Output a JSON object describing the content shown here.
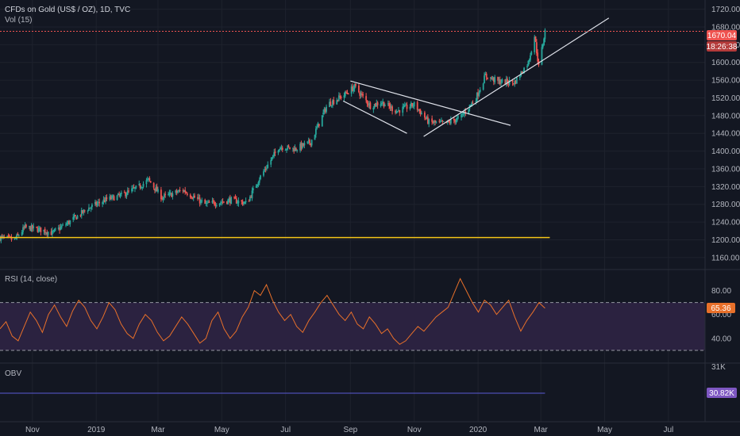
{
  "header": {
    "symbol": "CFDs on Gold (US$ / OZ), 1D, TVC",
    "volume_label": "Vol (15)"
  },
  "rsi_label": "RSI (14, close)",
  "obv_label": "OBV",
  "badges": {
    "price": "1670.04",
    "countdown": "18:26:38",
    "rsi": "65.36",
    "obv": "30.82K"
  },
  "colors": {
    "background": "#131722",
    "grid": "#1e222d",
    "up": "#26a69a",
    "down": "#ef5350",
    "rsi_line": "#e8702a",
    "rsi_band": "#2b2240",
    "support_line": "#f5c518",
    "trend_lines": "#e0e3eb",
    "price_badge": "#ef5350",
    "obv_line": "#5b5bd6",
    "obv_badge": "#7e57c2"
  },
  "x_axis_labels": [
    "Nov",
    "2019",
    "Mar",
    "May",
    "Jul",
    "Sep",
    "Nov",
    "2020",
    "Mar",
    "May",
    "Jul"
  ],
  "chart_data": [
    {
      "type": "candlestick",
      "title": "CFDs on Gold (US$ / OZ), 1D, TVC",
      "y_ticks": [
        1720,
        1680,
        1640,
        1600,
        1560,
        1520,
        1480,
        1440,
        1400,
        1360,
        1320,
        1280,
        1240,
        1200,
        1160
      ],
      "y_range": [
        1140,
        1730
      ],
      "x_range": [
        "2018-10-01",
        "2020-08-05"
      ],
      "current_price": 1670.04,
      "close_path": [
        [
          "2018-10-01",
          1205
        ],
        [
          "2018-10-15",
          1200
        ],
        [
          "2018-10-25",
          1228
        ],
        [
          "2018-11-10",
          1222
        ],
        [
          "2018-11-20",
          1215
        ],
        [
          "2018-12-05",
          1238
        ],
        [
          "2018-12-25",
          1272
        ],
        [
          "2019-01-10",
          1290
        ],
        [
          "2019-01-25",
          1300
        ],
        [
          "2019-02-10",
          1318
        ],
        [
          "2019-02-20",
          1335
        ],
        [
          "2019-03-05",
          1295
        ],
        [
          "2019-03-25",
          1312
        ],
        [
          "2019-04-15",
          1280
        ],
        [
          "2019-04-30",
          1285
        ],
        [
          "2019-05-10",
          1290
        ],
        [
          "2019-05-25",
          1282
        ],
        [
          "2019-06-05",
          1335
        ],
        [
          "2019-06-25",
          1410
        ],
        [
          "2019-07-10",
          1405
        ],
        [
          "2019-07-25",
          1420
        ],
        [
          "2019-08-10",
          1505
        ],
        [
          "2019-08-25",
          1525
        ],
        [
          "2019-09-05",
          1545
        ],
        [
          "2019-09-20",
          1502
        ],
        [
          "2019-10-01",
          1510
        ],
        [
          "2019-10-15",
          1490
        ],
        [
          "2019-11-01",
          1505
        ],
        [
          "2019-11-15",
          1465
        ],
        [
          "2019-12-01",
          1462
        ],
        [
          "2019-12-15",
          1475
        ],
        [
          "2019-12-30",
          1520
        ],
        [
          "2020-01-08",
          1570
        ],
        [
          "2020-01-20",
          1557
        ],
        [
          "2020-02-05",
          1555
        ],
        [
          "2020-02-18",
          1600
        ],
        [
          "2020-02-24",
          1660
        ],
        [
          "2020-02-28",
          1590
        ],
        [
          "2020-03-05",
          1670
        ]
      ],
      "horizontal_lines": [
        {
          "price": 1205,
          "from": "2018-10-01",
          "to": "2020-03-05",
          "color": "support"
        }
      ],
      "trend_lines": [
        {
          "from": [
            "2019-09-01",
            1558
          ],
          "to": [
            "2020-02-01",
            1458
          ]
        },
        {
          "from": [
            "2019-08-25",
            1513
          ],
          "to": [
            "2019-10-25",
            1440
          ]
        },
        {
          "from": [
            "2019-11-10",
            1433
          ],
          "to": [
            "2020-05-05",
            1700
          ]
        }
      ]
    },
    {
      "type": "line",
      "title": "RSI (14, close)",
      "y_ticks": [
        80,
        60,
        40
      ],
      "y_range": [
        22,
        95
      ],
      "bands": [
        30,
        70
      ],
      "current_value": 65.36,
      "values": [
        48,
        54,
        42,
        38,
        50,
        62,
        55,
        45,
        60,
        68,
        58,
        50,
        63,
        72,
        66,
        55,
        48,
        58,
        70,
        64,
        52,
        44,
        40,
        52,
        60,
        55,
        45,
        38,
        42,
        50,
        58,
        52,
        44,
        36,
        40,
        55,
        62,
        48,
        40,
        46,
        58,
        66,
        80,
        76,
        85,
        72,
        62,
        55,
        60,
        50,
        45,
        55,
        62,
        70,
        76,
        68,
        60,
        55,
        62,
        52,
        48,
        58,
        52,
        44,
        48,
        40,
        35,
        38,
        44,
        50,
        46,
        52,
        58,
        62,
        66,
        78,
        90,
        80,
        70,
        62,
        72,
        68,
        60,
        66,
        72,
        58,
        46,
        55,
        62,
        70,
        65.36
      ]
    },
    {
      "type": "line",
      "title": "OBV",
      "current_value": "30.82K",
      "y_ticks_visible": [
        "31K"
      ]
    }
  ]
}
